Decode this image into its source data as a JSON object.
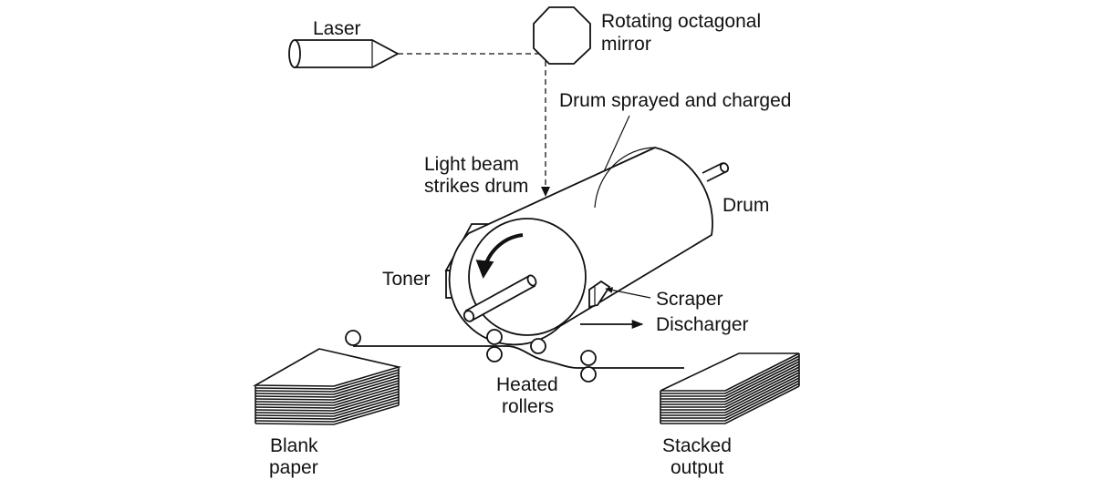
{
  "diagram": {
    "labels": {
      "laser": "Laser",
      "mirror_line1": "Rotating octagonal",
      "mirror_line2": "mirror",
      "drum_sprayed": "Drum sprayed and charged",
      "light_line1": "Light beam",
      "light_line2": "strikes drum",
      "drum": "Drum",
      "toner": "Toner",
      "scraper": "Scraper",
      "discharger": "Discharger",
      "heated_line1": "Heated",
      "heated_line2": "rollers",
      "blank_line1": "Blank",
      "blank_line2": "paper",
      "stacked_line1": "Stacked",
      "stacked_line2": "output"
    },
    "colors": {
      "stroke": "#111111",
      "background": "#ffffff"
    }
  }
}
